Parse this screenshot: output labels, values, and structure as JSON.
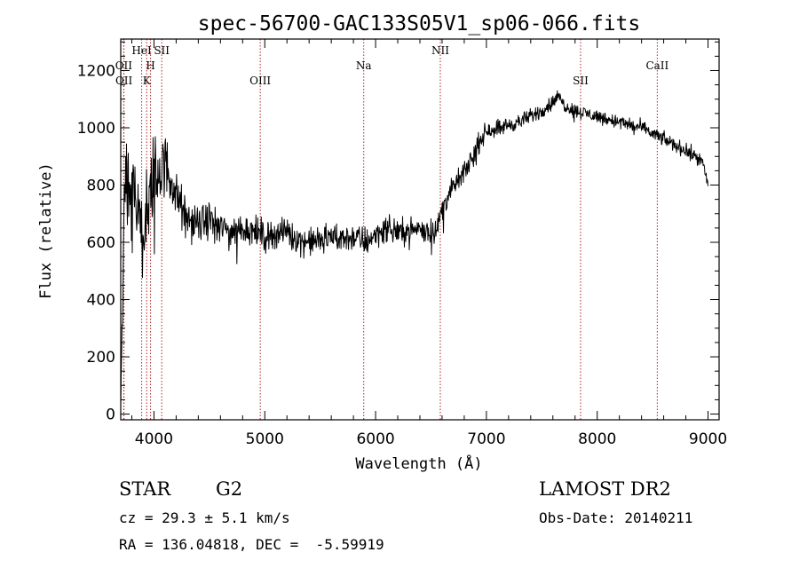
{
  "chart_data": {
    "type": "line",
    "title": "spec-56700-GAC133S05V1_sp06-066.fits",
    "xlabel": "Wavelength (Å)",
    "ylabel": "Flux (relative)",
    "xlim": [
      3700,
      9100
    ],
    "ylim": [
      -20,
      1310
    ],
    "xticks": [
      4000,
      5000,
      6000,
      7000,
      8000,
      9000
    ],
    "xtick_labels": [
      "4000",
      "5000",
      "6000",
      "7000",
      "8000",
      "9000"
    ],
    "yticks": [
      0,
      200,
      400,
      600,
      800,
      1000,
      1200
    ],
    "ytick_labels": [
      "0",
      "200",
      "400",
      "600",
      "800",
      "1000",
      "1200"
    ],
    "grid": false,
    "legend": "none",
    "line_color": "#000000",
    "marker_color": "#b22222",
    "lines": [
      {
        "label": "OII",
        "x": 3727,
        "row": 0
      },
      {
        "label": "OII",
        "x": 3729,
        "row": 1
      },
      {
        "label": "HeI",
        "x": 3889,
        "row": -1
      },
      {
        "label": "K",
        "x": 3934,
        "row": 1
      },
      {
        "label": "H",
        "x": 3969,
        "row": 0
      },
      {
        "label": "SII",
        "x": 4070,
        "row": -1
      },
      {
        "label": "OIII",
        "x": 4959,
        "row": 1
      },
      {
        "label": "Na",
        "x": 5893,
        "row": 0
      },
      {
        "label": "NII",
        "x": 6584,
        "row": -1
      },
      {
        "label": "SII",
        "x": 7850,
        "row": 1
      },
      {
        "label": "CaII",
        "x": 8542,
        "row": 0
      }
    ],
    "series": [
      {
        "x": [
          3700,
          3730,
          3760,
          3800,
          3850,
          3900,
          3950,
          4000,
          4050,
          4100,
          4150,
          4200,
          4300,
          4400,
          4500,
          4600,
          4700,
          4800,
          4900,
          5000,
          5100,
          5200,
          5300,
          5400,
          5500,
          5600,
          5700,
          5800,
          5900,
          6000,
          6100,
          6200,
          6300,
          6400,
          6500,
          6560,
          6600,
          6650,
          6700,
          6750,
          6800,
          6850,
          6900,
          6950,
          7000,
          7100,
          7200,
          7300,
          7400,
          7500,
          7600,
          7650,
          7700,
          7800,
          7900,
          8000,
          8100,
          8200,
          8300,
          8400,
          8500,
          8600,
          8700,
          8800,
          8900,
          8950,
          9000
        ],
        "y": [
          30,
          700,
          850,
          780,
          720,
          650,
          740,
          820,
          850,
          870,
          830,
          760,
          680,
          660,
          680,
          650,
          640,
          650,
          640,
          620,
          630,
          640,
          610,
          600,
          610,
          620,
          610,
          620,
          600,
          630,
          650,
          640,
          640,
          650,
          640,
          650,
          720,
          760,
          790,
          820,
          840,
          880,
          920,
          960,
          990,
          1000,
          1010,
          1020,
          1040,
          1060,
          1090,
          1110,
          1080,
          1060,
          1050,
          1040,
          1030,
          1020,
          1010,
          1000,
          980,
          960,
          940,
          920,
          900,
          880,
          800
        ],
        "noise": [
          0,
          160,
          170,
          150,
          130,
          120,
          130,
          130,
          110,
          90,
          80,
          70,
          55,
          50,
          50,
          45,
          45,
          45,
          45,
          45,
          40,
          40,
          40,
          40,
          40,
          40,
          40,
          40,
          45,
          40,
          35,
          35,
          35,
          35,
          35,
          35,
          35,
          30,
          30,
          30,
          30,
          30,
          30,
          28,
          25,
          25,
          22,
          22,
          22,
          22,
          20,
          20,
          20,
          20,
          20,
          20,
          20,
          20,
          20,
          20,
          20,
          20,
          20,
          20,
          20,
          20,
          20
        ]
      }
    ]
  },
  "info": {
    "object_class": "STAR",
    "subclass": "G2",
    "survey": "LAMOST DR2",
    "redshift": "cz = 29.3 ± 5.1 km/s",
    "obs_date": "Obs-Date: 20140211",
    "coords": "RA = 136.04818, DEC =  -5.59919"
  }
}
